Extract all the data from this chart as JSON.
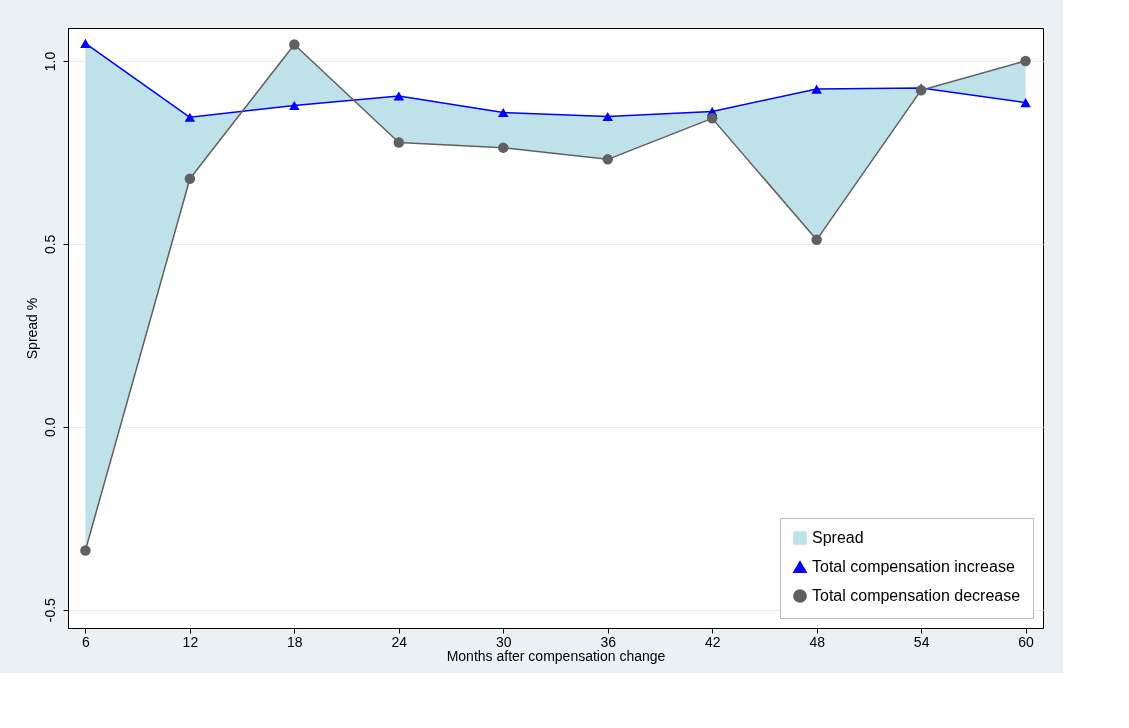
{
  "chart_data": {
    "type": "line",
    "xlabel": "Months after compensation change",
    "ylabel": "Spread %",
    "x": [
      6,
      12,
      18,
      24,
      30,
      36,
      42,
      48,
      54,
      60
    ],
    "series": [
      {
        "name": "Spread",
        "type": "area",
        "color": "#bfe1ea",
        "values": [
          null,
          null,
          null,
          null,
          null,
          null,
          null,
          null,
          null,
          null
        ],
        "lower": [
          -0.338,
          0.678,
          1.045,
          0.777,
          0.763,
          0.731,
          0.843,
          0.511,
          0.92,
          1.0
        ],
        "upper": [
          1.048,
          0.846,
          0.878,
          0.904,
          0.859,
          0.848,
          0.862,
          0.923,
          0.926,
          0.886
        ]
      },
      {
        "name": "Total compensation increase",
        "type": "line",
        "color": "#0000ff",
        "marker": "triangle",
        "values": [
          1.048,
          0.846,
          0.878,
          0.904,
          0.859,
          0.848,
          0.862,
          0.923,
          0.926,
          0.886
        ]
      },
      {
        "name": "Total compensation decrease",
        "type": "line",
        "color": "#606060",
        "marker": "circle",
        "values": [
          -0.338,
          0.678,
          1.045,
          0.777,
          0.763,
          0.731,
          0.843,
          0.511,
          0.92,
          1.0
        ]
      }
    ],
    "xlim": [
      5,
      61
    ],
    "xticks": [
      6,
      12,
      18,
      24,
      30,
      36,
      42,
      48,
      54,
      60
    ],
    "ylim": [
      -0.55,
      1.09
    ],
    "yticks": [
      {
        "value": -0.5,
        "label": "-0.5"
      },
      {
        "value": 0,
        "label": "0.0"
      },
      {
        "value": 0.5,
        "label": "0.5"
      },
      {
        "value": 1,
        "label": "1.0"
      }
    ],
    "grid": "y",
    "legend": "bottom right",
    "line_style": "solid"
  }
}
